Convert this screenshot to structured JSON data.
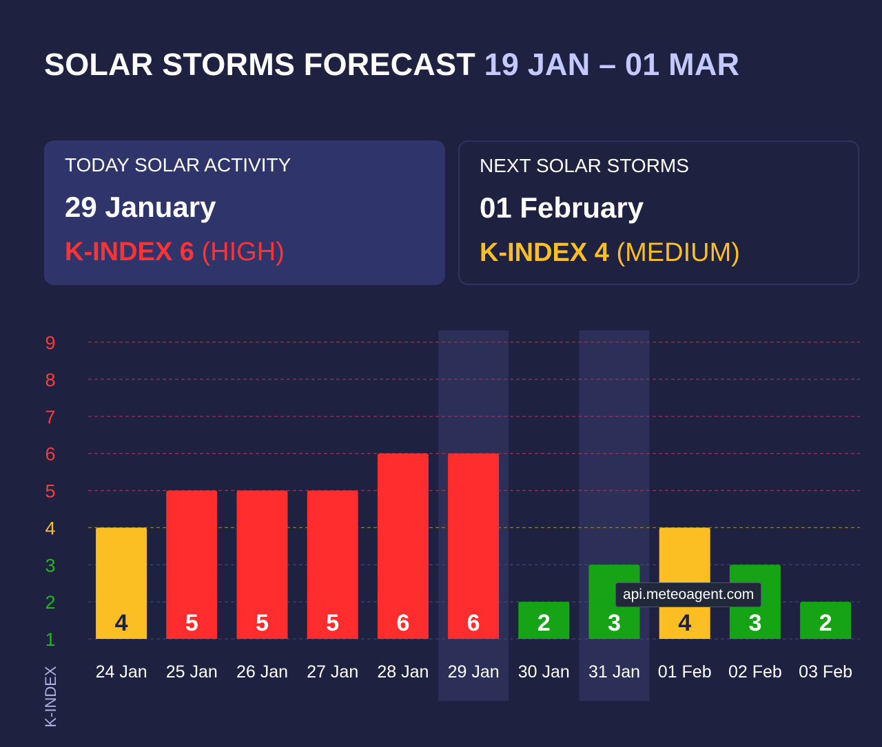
{
  "header": {
    "title": "SOLAR STORMS FORECAST",
    "range": "19 JAN – 01 MAR"
  },
  "cards": {
    "today": {
      "label": "TODAY SOLAR ACTIVITY",
      "date": "29 January",
      "kindex_label": "K-INDEX 6",
      "level": "(HIGH)",
      "color": "#ff3333"
    },
    "next": {
      "label": "NEXT SOLAR STORMS",
      "date": "01 February",
      "kindex_label": "K-INDEX 4",
      "level": "(MEDIUM)",
      "color": "#fbbf24"
    }
  },
  "watermark": "api.meteoagent.com",
  "colors": {
    "background": "#1e2140",
    "high": "#ff2d2d",
    "medium": "#fbbf24",
    "low": "#16a316",
    "tick_high": "#ff3b3b",
    "tick_medium": "#fbbf24",
    "tick_low": "#22b522",
    "highlight": "#2c3058"
  },
  "chart_data": {
    "type": "bar",
    "title": "Solar storms forecast",
    "ylabel": "K-INDEX",
    "xlabel": "",
    "ylim": [
      1,
      9
    ],
    "yticks": [
      1,
      2,
      3,
      4,
      5,
      6,
      7,
      8,
      9
    ],
    "categories": [
      "24 Jan",
      "25 Jan",
      "26 Jan",
      "27 Jan",
      "28 Jan",
      "29 Jan",
      "30 Jan",
      "31 Jan",
      "01 Feb",
      "02 Feb",
      "03 Feb"
    ],
    "values": [
      4,
      5,
      5,
      5,
      6,
      6,
      2,
      3,
      4,
      3,
      2
    ],
    "highlighted": [
      "29 Jan",
      "31 Jan"
    ],
    "grid": true
  }
}
